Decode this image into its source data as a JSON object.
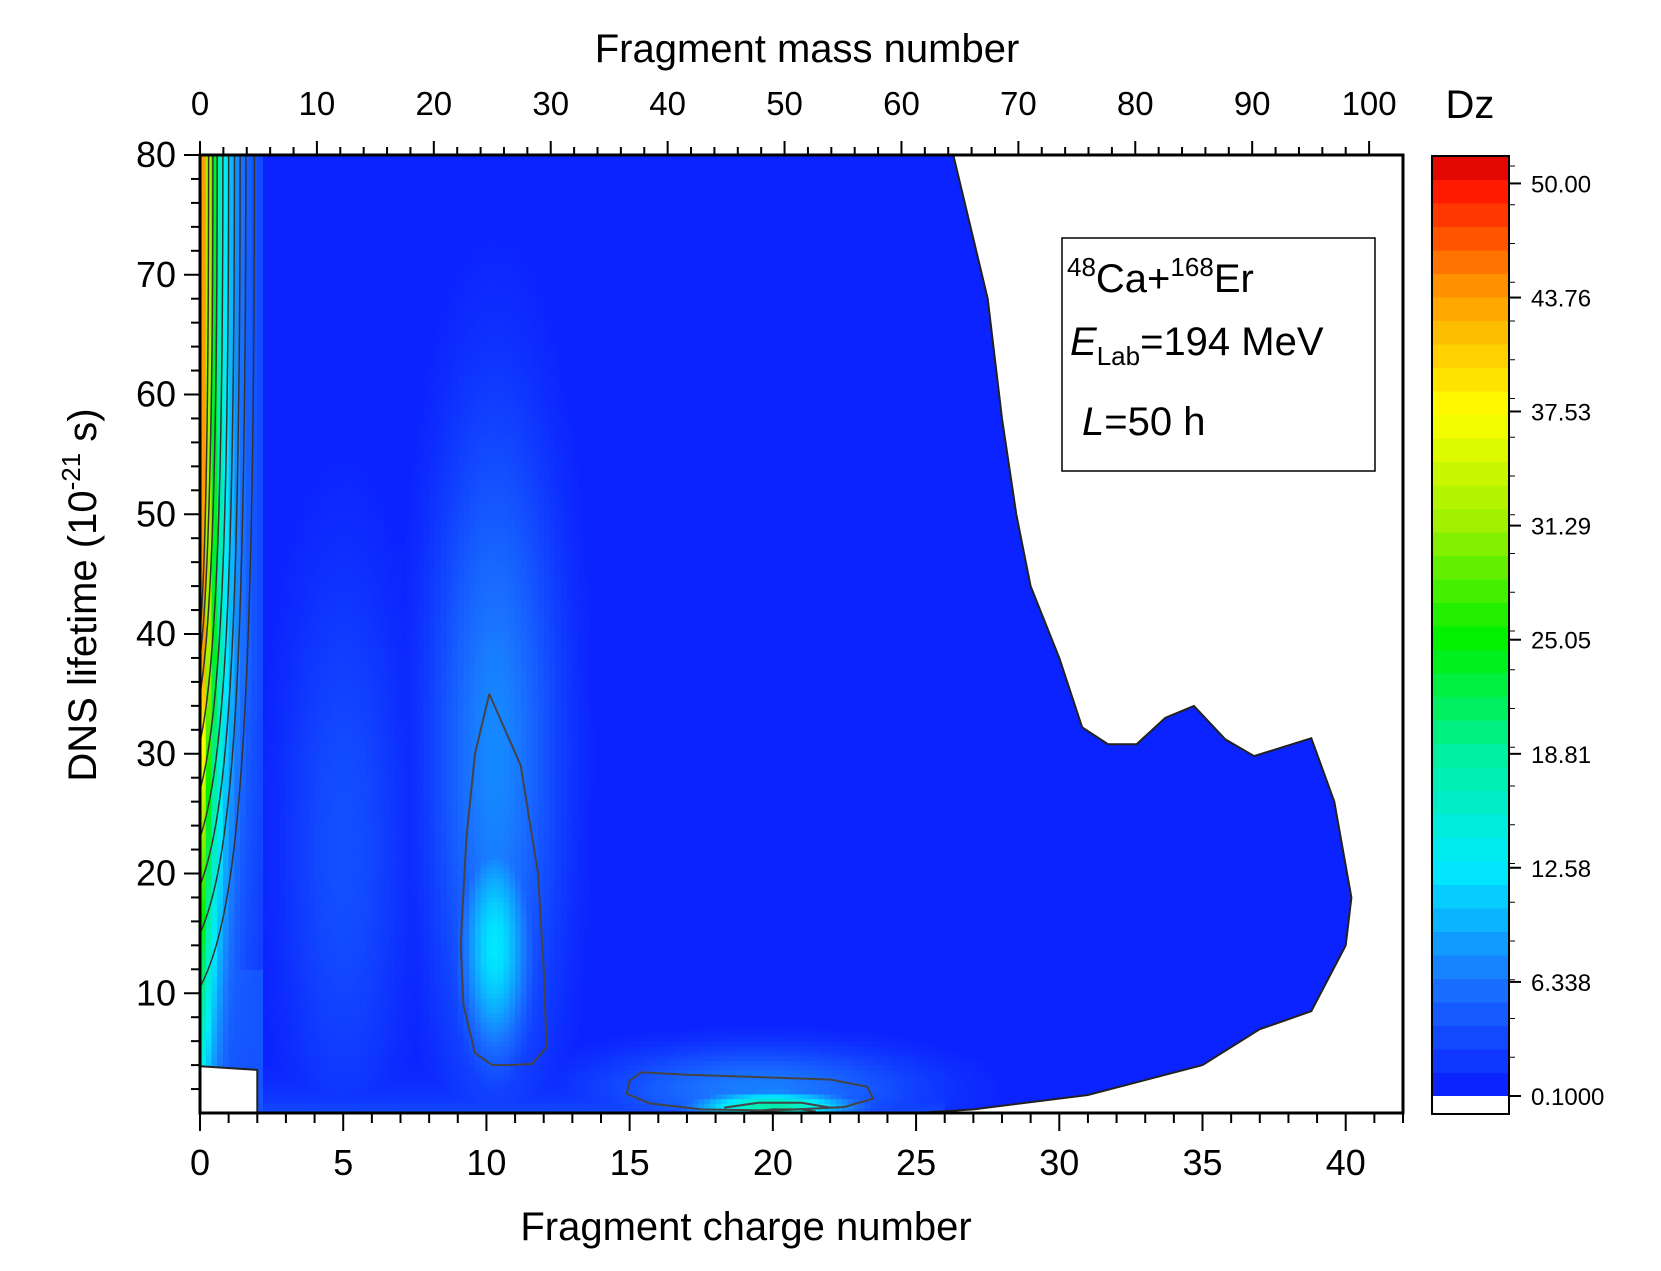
{
  "chart_data": {
    "type": "heatmap",
    "title": "",
    "xlabel": "Fragment charge number",
    "x2label": "Fragment mass number",
    "ylabel_main": "DNS lifetime (10",
    "ylabel_sup": "-21",
    "ylabel_tail": " s)",
    "xlim": [
      0,
      42
    ],
    "x2lim": [
      0,
      102.9
    ],
    "ylim": [
      0,
      80
    ],
    "x_ticks": [
      0,
      5,
      10,
      15,
      20,
      25,
      30,
      35,
      40
    ],
    "x_tick_labels": [
      "0",
      "5",
      "10",
      "15",
      "20",
      "25",
      "30",
      "35",
      "40"
    ],
    "x2_ticks": [
      0,
      10,
      20,
      30,
      40,
      50,
      60,
      70,
      80,
      90,
      100
    ],
    "x2_tick_labels": [
      "0",
      "10",
      "20",
      "30",
      "40",
      "50",
      "60",
      "70",
      "80",
      "90",
      "100"
    ],
    "y_ticks": [
      10,
      20,
      30,
      40,
      50,
      60,
      70,
      80
    ],
    "y_tick_labels": [
      "10",
      "20",
      "30",
      "40",
      "50",
      "60",
      "70",
      "80"
    ],
    "colorbar": {
      "title": "Dz",
      "min": 0.1,
      "max": 51.5,
      "tick_values": [
        50.0,
        43.76,
        37.53,
        31.29,
        25.05,
        18.81,
        12.58,
        6.338,
        0.1
      ],
      "tick_labels": [
        "50.00",
        "43.76",
        "37.53",
        "31.29",
        "25.05",
        "18.81",
        "12.58",
        "6.338",
        "0.1000"
      ],
      "stops": [
        {
          "v": 0.1,
          "color": "#0a1cff"
        },
        {
          "v": 6.338,
          "color": "#1a73ff"
        },
        {
          "v": 12.58,
          "color": "#00eaff"
        },
        {
          "v": 18.81,
          "color": "#00f0a0"
        },
        {
          "v": 25.05,
          "color": "#00f000"
        },
        {
          "v": 31.29,
          "color": "#9cf000"
        },
        {
          "v": 37.53,
          "color": "#ffff00"
        },
        {
          "v": 43.76,
          "color": "#ffa000"
        },
        {
          "v": 50.0,
          "color": "#ff1000"
        },
        {
          "v": 51.5,
          "color": "#cc0000"
        }
      ]
    },
    "domain_boundary": [
      [
        26.3,
        80
      ],
      [
        27.5,
        68
      ],
      [
        28.0,
        58
      ],
      [
        28.5,
        50
      ],
      [
        29.0,
        44
      ],
      [
        30.0,
        38
      ],
      [
        30.8,
        32.2
      ],
      [
        31.7,
        30.8
      ],
      [
        32.7,
        30.8
      ],
      [
        33.7,
        33.0
      ],
      [
        34.7,
        34.0
      ],
      [
        35.8,
        31.2
      ],
      [
        36.8,
        29.8
      ],
      [
        38.8,
        31.3
      ],
      [
        39.6,
        26.0
      ],
      [
        40.2,
        18.0
      ],
      [
        40.0,
        14.0
      ],
      [
        38.8,
        8.5
      ],
      [
        37.0,
        7.0
      ],
      [
        35.0,
        4.0
      ],
      [
        31.0,
        1.5
      ],
      [
        27.0,
        0.3
      ],
      [
        25.0,
        0
      ],
      [
        2.0,
        0
      ],
      [
        2.0,
        3.6
      ],
      [
        0,
        3.9
      ]
    ],
    "hotspots": [
      {
        "z": 10.3,
        "t": 14.0,
        "peak": 12.5,
        "sz": 0.9,
        "st": 7.0
      },
      {
        "z": 10.3,
        "t": 30.0,
        "peak": 7.5,
        "sz": 1.6,
        "st": 20.0
      },
      {
        "z": 20.0,
        "t": 0.6,
        "peak": 18.0,
        "sz": 2.0,
        "st": 0.9
      },
      {
        "z": 19.5,
        "t": 2.0,
        "peak": 7.0,
        "sz": 4.0,
        "st": 2.5
      },
      {
        "z": 5.0,
        "t": 22.0,
        "peak": 3.8,
        "sz": 1.6,
        "st": 18.0
      }
    ],
    "contour_lines": [
      [
        [
          10.1,
          35.0
        ],
        [
          11.2,
          29.0
        ],
        [
          11.8,
          20.0
        ],
        [
          12.0,
          12.0
        ],
        [
          12.1,
          5.5
        ],
        [
          11.6,
          4.1
        ],
        [
          10.8,
          4.0
        ],
        [
          10.2,
          4.0
        ],
        [
          9.6,
          5.0
        ],
        [
          9.2,
          9.0
        ],
        [
          9.1,
          14.0
        ],
        [
          9.3,
          23.0
        ],
        [
          9.6,
          30.0
        ],
        [
          10.1,
          35.0
        ]
      ],
      [
        [
          15.4,
          3.4
        ],
        [
          17.0,
          3.2
        ],
        [
          19.5,
          3.0
        ],
        [
          22.0,
          2.8
        ],
        [
          23.3,
          2.2
        ],
        [
          23.5,
          1.2
        ],
        [
          22.5,
          0.5
        ],
        [
          20.0,
          0.2
        ],
        [
          17.5,
          0.3
        ],
        [
          15.7,
          0.8
        ],
        [
          14.9,
          1.6
        ],
        [
          15.0,
          2.7
        ],
        [
          15.4,
          3.4
        ]
      ],
      [
        [
          18.3,
          0.45
        ],
        [
          19.5,
          0.85
        ],
        [
          21.0,
          0.85
        ],
        [
          22.0,
          0.45
        ]
      ],
      [
        [
          19.2,
          0.12
        ],
        [
          20.0,
          0.3
        ],
        [
          21.0,
          0.3
        ],
        [
          21.5,
          0.12
        ]
      ]
    ],
    "legend_box": {
      "reaction_a_mass": "48",
      "reaction_a_sym": "Ca+",
      "reaction_b_mass": "168",
      "reaction_b_sym": "Er",
      "energy_symbol": "E",
      "energy_subscript": "Lab",
      "energy_value": "=194 MeV",
      "l_symbol": "L",
      "l_value": "=50 h"
    }
  }
}
